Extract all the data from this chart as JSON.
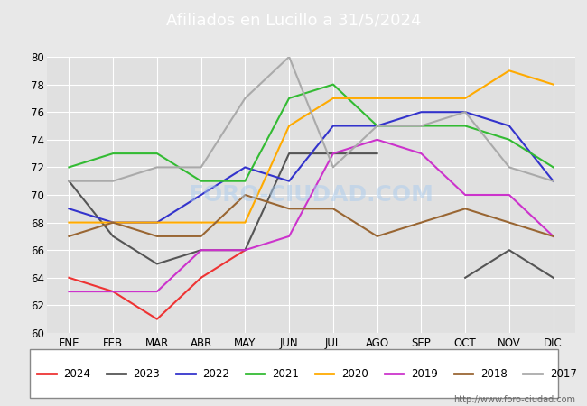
{
  "title": "Afiliados en Lucillo a 31/5/2024",
  "ylim": [
    60,
    80
  ],
  "yticks": [
    60,
    62,
    64,
    66,
    68,
    70,
    72,
    74,
    76,
    78,
    80
  ],
  "months": [
    "ENE",
    "FEB",
    "MAR",
    "ABR",
    "MAY",
    "JUN",
    "JUL",
    "AGO",
    "SEP",
    "OCT",
    "NOV",
    "DIC"
  ],
  "series": {
    "2024": {
      "color": "#ee3333",
      "data": [
        64,
        63,
        61,
        64,
        66,
        null,
        null,
        null,
        null,
        null,
        null,
        null
      ]
    },
    "2023": {
      "color": "#555555",
      "data": [
        71,
        67,
        65,
        66,
        66,
        73,
        73,
        73,
        null,
        64,
        66,
        64
      ]
    },
    "2022": {
      "color": "#3333cc",
      "data": [
        69,
        68,
        68,
        70,
        72,
        71,
        75,
        75,
        76,
        76,
        75,
        71
      ]
    },
    "2021": {
      "color": "#33bb33",
      "data": [
        72,
        73,
        73,
        71,
        71,
        77,
        78,
        75,
        75,
        75,
        74,
        72
      ]
    },
    "2020": {
      "color": "#ffaa00",
      "data": [
        68,
        68,
        68,
        68,
        68,
        75,
        77,
        77,
        77,
        77,
        79,
        78
      ]
    },
    "2019": {
      "color": "#cc33cc",
      "data": [
        63,
        63,
        63,
        66,
        66,
        67,
        73,
        74,
        73,
        70,
        70,
        67
      ]
    },
    "2018": {
      "color": "#996633",
      "data": [
        67,
        68,
        67,
        67,
        70,
        69,
        69,
        67,
        68,
        69,
        68,
        67
      ]
    },
    "2017": {
      "color": "#aaaaaa",
      "data": [
        71,
        71,
        72,
        72,
        77,
        80,
        72,
        75,
        75,
        76,
        72,
        71
      ]
    }
  },
  "watermark": "FORO-CIUDAD.COM",
  "website": "http://www.foro-ciudad.com",
  "title_bg": "#5588bb",
  "title_color": "#ffffff",
  "bg_color": "#e8e8e8",
  "plot_bg": "#e0e0e0",
  "grid_color": "#ffffff",
  "legend_years": [
    "2024",
    "2023",
    "2022",
    "2021",
    "2020",
    "2019",
    "2018",
    "2017"
  ]
}
